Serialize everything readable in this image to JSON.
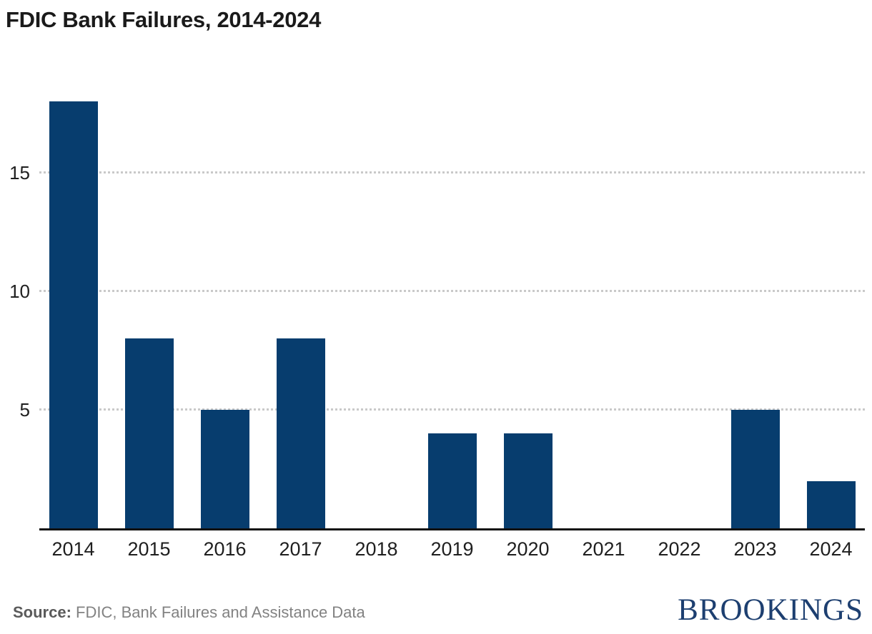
{
  "chart": {
    "title": "FDIC Bank Failures, 2014-2024"
  },
  "chart_data": {
    "type": "bar",
    "title": "FDIC Bank Failures, 2014-2024",
    "categories": [
      "2014",
      "2015",
      "2016",
      "2017",
      "2018",
      "2019",
      "2020",
      "2021",
      "2022",
      "2023",
      "2024"
    ],
    "values": [
      18,
      8,
      5,
      8,
      0,
      4,
      4,
      0,
      0,
      5,
      2
    ],
    "xlabel": "",
    "ylabel": "",
    "ylim": [
      0,
      19
    ],
    "yticks": [
      5,
      10,
      15
    ],
    "grid": "horizontal-dotted",
    "legend": "none"
  },
  "footer": {
    "source_label": "Source:",
    "source_text": " FDIC, Bank Failures and Assistance Data",
    "logo_text": "BROOKINGS"
  },
  "colors": {
    "bar": "#073d6e",
    "grid": "#c9c9c9",
    "axis": "#111111",
    "title": "#1a1a1a",
    "tick": "#1f1f1f",
    "source-label": "#5a5a5a",
    "source-text": "#828282",
    "logo": "#1d3f70"
  }
}
